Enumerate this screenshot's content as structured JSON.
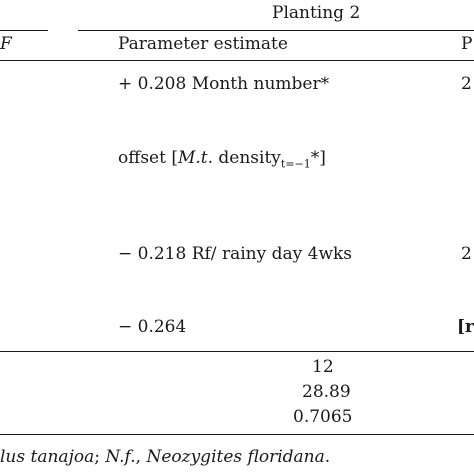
{
  "header": {
    "group_title": "Planting 2",
    "left_fragment": "F",
    "col_param": "Parameter estimate",
    "col_right_fragment": "P"
  },
  "rows": [
    {
      "param": "+ 0.208 Month number*",
      "right": "2"
    },
    {
      "param_prefix": "offset [",
      "param_italic": "M.t.",
      "param_mid": " density",
      "param_sub": "t=−1",
      "param_suffix": "*]",
      "right": ""
    },
    {
      "param": "− 0.218 Rf/ rainy day 4wks",
      "right": "2"
    },
    {
      "param": "− 0.264",
      "right": "[r"
    }
  ],
  "stats": [
    "12",
    "28.89",
    "0.7065"
  ],
  "footnote": {
    "part1": "lus tanajoa",
    "part2": "; ",
    "part3": "N.f.",
    "part4": ", ",
    "part5": "Neozygites floridana",
    "part6": "."
  }
}
